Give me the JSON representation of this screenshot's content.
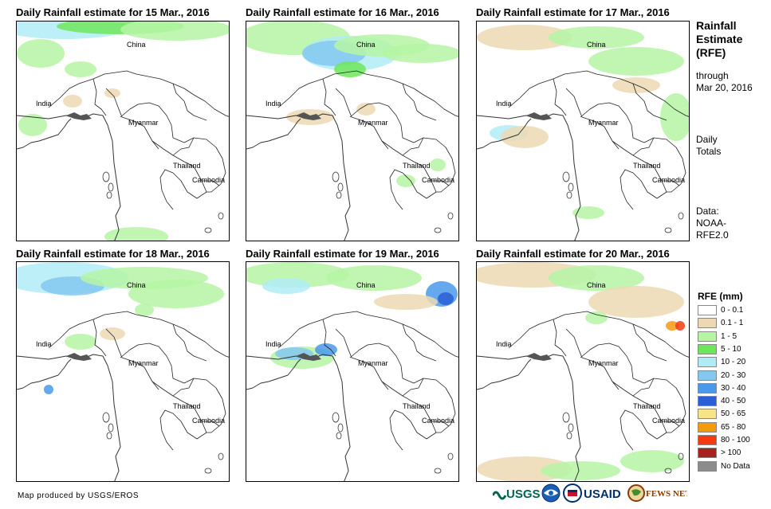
{
  "panels": [
    {
      "title": "Daily Rainfall estimate for 15 Mar., 2016"
    },
    {
      "title": "Daily Rainfall estimate for 16 Mar., 2016"
    },
    {
      "title": "Daily Rainfall estimate for 17 Mar., 2016"
    },
    {
      "title": "Daily Rainfall estimate for 18 Mar., 2016"
    },
    {
      "title": "Daily Rainfall estimate for 19 Mar., 2016"
    },
    {
      "title": "Daily Rainfall estimate for 20 Mar., 2016"
    }
  ],
  "places": {
    "china": "China",
    "india": "India",
    "myanmar": "Myanmar",
    "thailand": "Thailand",
    "cambodia": "Cambodia"
  },
  "sidebar": {
    "title_line1": "Rainfall",
    "title_line2": "Estimate",
    "title_line3": "(RFE)",
    "through": "through",
    "date": "Mar 20, 2016",
    "daily1": "Daily",
    "daily2": "Totals",
    "data1": "Data:",
    "data2": "NOAA-",
    "data3": "RFE2.0"
  },
  "legend": {
    "title": "RFE (mm)",
    "items": [
      {
        "label": "0 - 0.1",
        "color": "#ffffff"
      },
      {
        "label": "0.1 - 1",
        "color": "#ecd9b4"
      },
      {
        "label": "1 - 5",
        "color": "#b5f5a4"
      },
      {
        "label": "5 - 10",
        "color": "#6ee65a"
      },
      {
        "label": "10 - 20",
        "color": "#b0ecf7"
      },
      {
        "label": "20 - 30",
        "color": "#84c8f0"
      },
      {
        "label": "30 - 40",
        "color": "#4a99ea"
      },
      {
        "label": "40 - 50",
        "color": "#2a5fd6"
      },
      {
        "label": "50 - 65",
        "color": "#f8e58a"
      },
      {
        "label": "65 - 80",
        "color": "#f59a10"
      },
      {
        "label": "80 - 100",
        "color": "#f53a10"
      },
      {
        "label": "> 100",
        "color": "#a82020"
      },
      {
        "label": "No Data",
        "color": "#8c8c8c"
      }
    ]
  },
  "credit": "Map produced by USGS/EROS",
  "logos": {
    "usgs": "USGS",
    "usaid": "USAID",
    "fewsnet": "FEWS NET"
  }
}
